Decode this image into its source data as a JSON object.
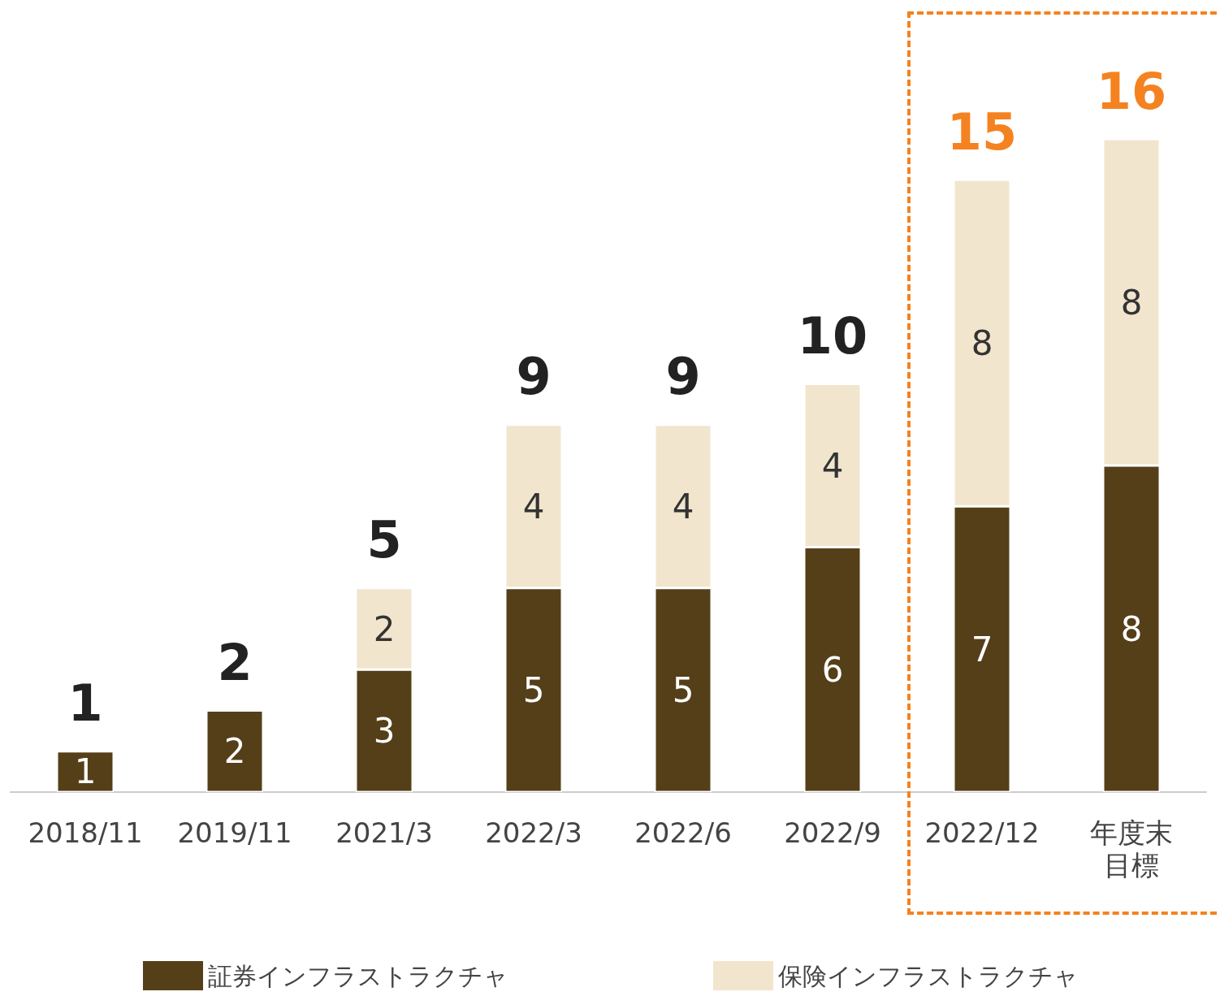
{
  "chart_data": {
    "type": "bar",
    "stacked": true,
    "data_labels": true,
    "legend": "bottom",
    "categories": [
      "2018/11",
      "2019/11",
      "2021/3",
      "2022/3",
      "2022/6",
      "2022/9",
      "2022/12",
      "年度末目標"
    ],
    "series": [
      {
        "name": "証券インフラストラクチャ",
        "color": "#553f19",
        "values": [
          1,
          2,
          3,
          5,
          5,
          6,
          7,
          8
        ]
      },
      {
        "name": "保険インフラストラクチャ",
        "color": "#f2e5cd",
        "values": [
          null,
          null,
          2,
          4,
          4,
          4,
          8,
          8
        ]
      }
    ],
    "totals": [
      "1",
      "2",
      "5",
      "9",
      "9",
      "10",
      "15",
      "16"
    ]
  }
}
